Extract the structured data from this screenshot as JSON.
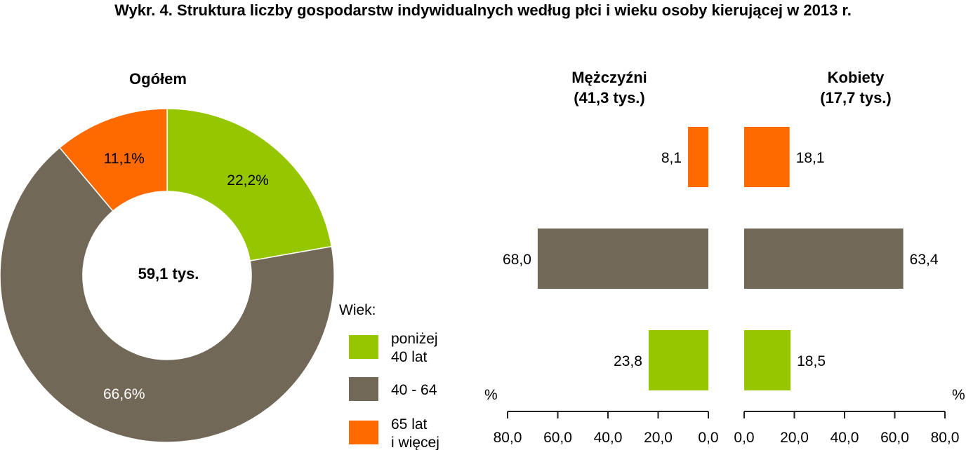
{
  "colors": {
    "green": "#96c600",
    "brown": "#726858",
    "orange": "#ff6a00"
  },
  "chart_data": [
    {
      "type": "pie",
      "title": "Wykr. 4.  Struktura liczby gospodarstw indywidualnych według płci i wieku osoby kierującej w 2013 r.",
      "subtitle": "Ogółem",
      "center_label": "59,1 tys.",
      "legend_title": "Wiek:",
      "legend_position": "bottom-right",
      "slices": [
        {
          "name": "poniżej 40 lat",
          "legend_lines": [
            "poniżej",
            "40 lat"
          ],
          "value": 22.2,
          "label": "22,2%",
          "color": "#96c600"
        },
        {
          "name": "40 - 64",
          "legend_lines": [
            "40 - 64"
          ],
          "value": 66.6,
          "label": "66,6%",
          "color": "#726858"
        },
        {
          "name": "65 lat i więcej",
          "legend_lines": [
            "65 lat",
            "i więcej"
          ],
          "value": 11.1,
          "label": "11,1%",
          "color": "#ff6a00"
        }
      ]
    },
    {
      "type": "bar",
      "orientation": "horizontal",
      "title_lines": [
        "Mężczyźni",
        "(41,3 tys.)"
      ],
      "xlabel": "%",
      "xlim": [
        0,
        80
      ],
      "direction": "reversed",
      "ticks": [
        "80,0",
        "60,0",
        "40,0",
        "20,0",
        "0,0"
      ],
      "categories": [
        "65 lat i więcej",
        "40 - 64",
        "poniżej 40 lat"
      ],
      "values": [
        8.1,
        68.0,
        23.8
      ],
      "labels": [
        "8,1",
        "68,0",
        "23,8"
      ],
      "colors": [
        "#ff6a00",
        "#726858",
        "#96c600"
      ]
    },
    {
      "type": "bar",
      "orientation": "horizontal",
      "title_lines": [
        "Kobiety",
        "(17,7 tys.)"
      ],
      "xlabel": "%",
      "xlim": [
        0,
        80
      ],
      "direction": "normal",
      "ticks": [
        "0,0",
        "20,0",
        "40,0",
        "60,0",
        "80,0"
      ],
      "categories": [
        "65 lat i więcej",
        "40 - 64",
        "poniżej 40 lat"
      ],
      "values": [
        18.1,
        63.4,
        18.5
      ],
      "labels": [
        "18,1",
        "63,4",
        "18,5"
      ],
      "colors": [
        "#ff6a00",
        "#726858",
        "#96c600"
      ]
    }
  ]
}
